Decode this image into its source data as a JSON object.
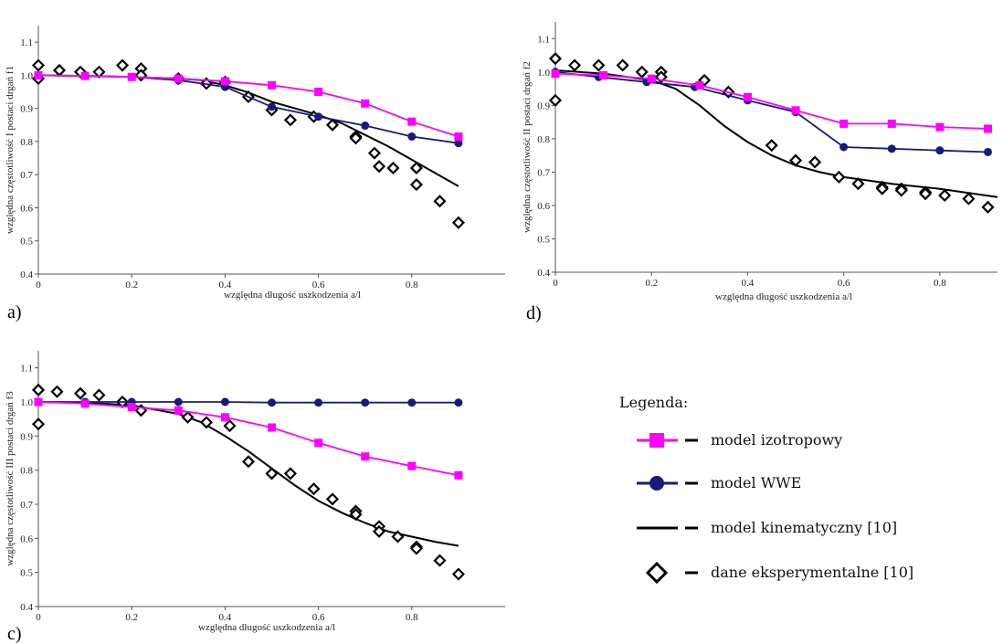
{
  "colors": {
    "izo": "#ff00ff",
    "wwe": "#1a1a7a",
    "kin": "#000000",
    "exp": "#000000"
  },
  "legend": {
    "title": "Legenda:",
    "entries": [
      {
        "key": "izo",
        "label": "model izotropowy"
      },
      {
        "key": "wwe",
        "label": "model WWE"
      },
      {
        "key": "kin",
        "label": "model kinematyczny [10]"
      },
      {
        "key": "exp",
        "label": "dane eksperymentalne [10]"
      }
    ]
  },
  "chart_data": [
    {
      "id": "a",
      "panel_label": "a)",
      "type": "line",
      "xlabel": "względna długość uszkodzenia a/l",
      "ylabel": "względna częstotliwość I postaci drgań f1",
      "xlim": [
        0,
        1.0
      ],
      "ylim": [
        0.4,
        1.15
      ],
      "xticks": [
        0,
        0.2,
        0.4,
        0.6,
        0.8
      ],
      "xtick_labels": [
        "0",
        "0.2",
        "0.4",
        "0.6",
        "0.8"
      ],
      "yticks": [
        0.4,
        0.5,
        0.6,
        0.7,
        0.8,
        0.9,
        1.0,
        1.1
      ],
      "ytick_labels": [
        "0.4",
        "0.5",
        "0.6",
        "0.7",
        "0.8",
        "0.9",
        "1.0",
        "1.1"
      ],
      "series": [
        {
          "key": "izo",
          "name": "model izotropowy",
          "style": "line-square",
          "x": [
            0,
            0.1,
            0.2,
            0.3,
            0.4,
            0.5,
            0.6,
            0.7,
            0.8,
            0.9
          ],
          "y": [
            1.0,
            0.998,
            0.995,
            0.99,
            0.982,
            0.97,
            0.95,
            0.915,
            0.86,
            0.815
          ]
        },
        {
          "key": "wwe",
          "name": "model WWE",
          "style": "line-circle",
          "x": [
            0,
            0.1,
            0.2,
            0.3,
            0.4,
            0.5,
            0.6,
            0.7,
            0.8,
            0.9
          ],
          "y": [
            1.0,
            0.998,
            0.995,
            0.985,
            0.965,
            0.905,
            0.875,
            0.848,
            0.815,
            0.795
          ]
        },
        {
          "key": "kin",
          "name": "model kinematyczny [10]",
          "style": "line",
          "x": [
            0,
            0.1,
            0.2,
            0.3,
            0.35,
            0.4,
            0.45,
            0.5,
            0.55,
            0.6,
            0.65,
            0.7,
            0.75,
            0.8,
            0.85,
            0.9
          ],
          "y": [
            1.0,
            0.998,
            0.995,
            0.99,
            0.985,
            0.97,
            0.948,
            0.92,
            0.9,
            0.88,
            0.855,
            0.82,
            0.785,
            0.745,
            0.705,
            0.665
          ]
        },
        {
          "key": "exp",
          "name": "dane eksperymentalne [10]",
          "style": "diamond",
          "x": [
            0,
            0,
            0.045,
            0.09,
            0.13,
            0.18,
            0.22,
            0.22,
            0.3,
            0.36,
            0.4,
            0.45,
            0.5,
            0.54,
            0.59,
            0.63,
            0.68,
            0.68,
            0.72,
            0.73,
            0.76,
            0.81,
            0.81,
            0.86,
            0.9
          ],
          "y": [
            1.03,
            0.99,
            1.015,
            1.01,
            1.01,
            1.03,
            1.02,
            1.0,
            0.99,
            0.975,
            0.98,
            0.935,
            0.895,
            0.865,
            0.875,
            0.85,
            0.815,
            0.81,
            0.765,
            0.725,
            0.72,
            0.72,
            0.67,
            0.62,
            0.555
          ]
        }
      ]
    },
    {
      "id": "d",
      "panel_label": "d)",
      "type": "line",
      "xlabel": "względna długość uszkodzenia a/l",
      "ylabel": "względna częstotliwość II postaci drgań f2",
      "xlim": [
        0,
        0.92
      ],
      "ylim": [
        0.4,
        1.15
      ],
      "xticks": [
        0,
        0.2,
        0.4,
        0.6,
        0.8
      ],
      "xtick_labels": [
        "0",
        "0.2",
        "0.4",
        "0.6",
        "0.8"
      ],
      "yticks": [
        0.4,
        0.5,
        0.6,
        0.7,
        0.8,
        0.9,
        1.0,
        1.1
      ],
      "ytick_labels": [
        "0.4",
        "0.5",
        "0.6",
        "0.7",
        "0.8",
        "0.9",
        "1.0",
        "1.1"
      ],
      "series": [
        {
          "key": "izo",
          "name": "model izotropowy",
          "style": "line-square",
          "x": [
            0,
            0.1,
            0.2,
            0.3,
            0.4,
            0.5,
            0.6,
            0.7,
            0.8,
            0.9
          ],
          "y": [
            0.995,
            0.99,
            0.98,
            0.96,
            0.925,
            0.885,
            0.845,
            0.845,
            0.835,
            0.83
          ]
        },
        {
          "key": "wwe",
          "name": "model WWE",
          "style": "line-circle",
          "x": [
            0,
            0.09,
            0.19,
            0.29,
            0.4,
            0.5,
            0.6,
            0.7,
            0.8,
            0.9
          ],
          "y": [
            1.0,
            0.985,
            0.97,
            0.955,
            0.915,
            0.88,
            0.775,
            0.77,
            0.765,
            0.76
          ]
        },
        {
          "key": "kin",
          "name": "model kinematyczny [10]",
          "style": "line",
          "x": [
            0,
            0.1,
            0.2,
            0.25,
            0.3,
            0.35,
            0.4,
            0.45,
            0.5,
            0.55,
            0.6,
            0.7,
            0.8,
            0.92
          ],
          "y": [
            1.005,
            0.995,
            0.975,
            0.95,
            0.9,
            0.84,
            0.79,
            0.75,
            0.72,
            0.7,
            0.685,
            0.665,
            0.65,
            0.625
          ]
        },
        {
          "key": "exp",
          "name": "dane eksperymentalne [10]",
          "style": "diamond",
          "x": [
            0,
            0,
            0.04,
            0.09,
            0.14,
            0.18,
            0.22,
            0.22,
            0.31,
            0.36,
            0.45,
            0.5,
            0.54,
            0.59,
            0.63,
            0.68,
            0.68,
            0.72,
            0.72,
            0.77,
            0.77,
            0.81,
            0.86,
            0.9
          ],
          "y": [
            1.04,
            0.915,
            1.02,
            1.02,
            1.02,
            1.0,
            1.0,
            0.985,
            0.975,
            0.94,
            0.78,
            0.735,
            0.73,
            0.685,
            0.665,
            0.655,
            0.65,
            0.65,
            0.645,
            0.64,
            0.635,
            0.63,
            0.62,
            0.595
          ]
        }
      ]
    },
    {
      "id": "c",
      "panel_label": "c)",
      "type": "line",
      "xlabel": "względna długość uszkodzenia a/l",
      "ylabel": "względna częstotliwość III postaci drgań f3",
      "xlim": [
        0,
        1.0
      ],
      "ylim": [
        0.4,
        1.15
      ],
      "xticks": [
        0,
        0.2,
        0.4,
        0.6,
        0.8
      ],
      "xtick_labels": [
        "0",
        "0.2",
        "0.4",
        "0.6",
        "0.8"
      ],
      "yticks": [
        0.4,
        0.5,
        0.6,
        0.7,
        0.8,
        0.9,
        1.0,
        1.1
      ],
      "ytick_labels": [
        "0.4",
        "0.5",
        "0.6",
        "0.7",
        "0.8",
        "0.9",
        "1.0",
        "1.1"
      ],
      "series": [
        {
          "key": "izo",
          "name": "model izotropowy",
          "style": "line-square",
          "x": [
            0,
            0.1,
            0.2,
            0.3,
            0.4,
            0.5,
            0.6,
            0.7,
            0.8,
            0.9
          ],
          "y": [
            1.0,
            0.995,
            0.985,
            0.975,
            0.955,
            0.925,
            0.88,
            0.84,
            0.812,
            0.785
          ]
        },
        {
          "key": "wwe",
          "name": "model WWE",
          "style": "line-circle",
          "x": [
            0,
            0.1,
            0.2,
            0.3,
            0.4,
            0.5,
            0.6,
            0.7,
            0.8,
            0.9
          ],
          "y": [
            1.0,
            1.0,
            1.0,
            1.0,
            1.0,
            0.998,
            0.998,
            0.998,
            0.998,
            0.998
          ]
        },
        {
          "key": "kin",
          "name": "model kinematyczny [10]",
          "style": "line",
          "x": [
            0,
            0.1,
            0.2,
            0.3,
            0.35,
            0.4,
            0.45,
            0.5,
            0.55,
            0.6,
            0.65,
            0.7,
            0.75,
            0.8,
            0.85,
            0.9
          ],
          "y": [
            1.0,
            0.998,
            0.99,
            0.965,
            0.94,
            0.9,
            0.855,
            0.805,
            0.755,
            0.71,
            0.675,
            0.645,
            0.62,
            0.605,
            0.59,
            0.578
          ]
        },
        {
          "key": "exp",
          "name": "dane eksperymentalne [10]",
          "style": "diamond",
          "x": [
            0,
            0,
            0.04,
            0.09,
            0.13,
            0.18,
            0.22,
            0.32,
            0.36,
            0.41,
            0.45,
            0.5,
            0.54,
            0.59,
            0.63,
            0.68,
            0.68,
            0.73,
            0.73,
            0.77,
            0.81,
            0.81,
            0.86,
            0.9
          ],
          "y": [
            1.035,
            0.935,
            1.03,
            1.025,
            1.02,
            1.0,
            0.975,
            0.955,
            0.94,
            0.93,
            0.825,
            0.79,
            0.79,
            0.745,
            0.715,
            0.68,
            0.67,
            0.635,
            0.62,
            0.605,
            0.575,
            0.57,
            0.535,
            0.495
          ]
        }
      ]
    }
  ]
}
